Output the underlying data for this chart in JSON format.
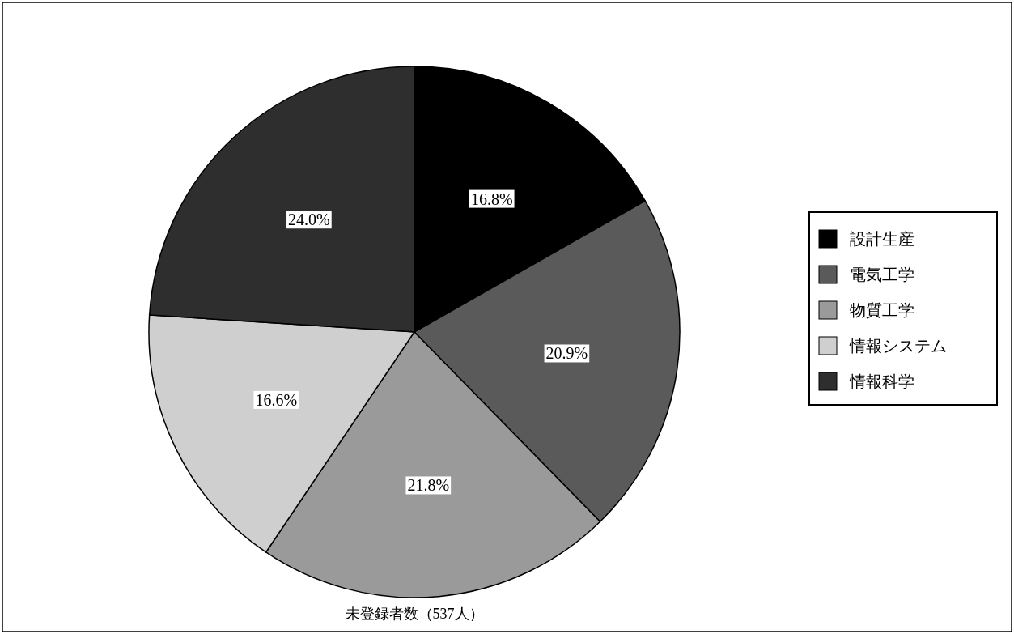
{
  "chart_data": {
    "type": "pie",
    "title": "未登録者数（537人）",
    "categories": [
      "設計生産",
      "電気工学",
      "物質工学",
      "情報システム",
      "情報科学"
    ],
    "values": [
      16.8,
      20.9,
      21.8,
      16.6,
      24.0
    ],
    "colors": [
      "#000000",
      "#5a5a5a",
      "#9a9a9a",
      "#cfcfcf",
      "#2e2e2e"
    ],
    "value_labels": [
      "16.8%",
      "20.9%",
      "21.8%",
      "16.6%",
      "24.0%"
    ],
    "legend": "right"
  }
}
